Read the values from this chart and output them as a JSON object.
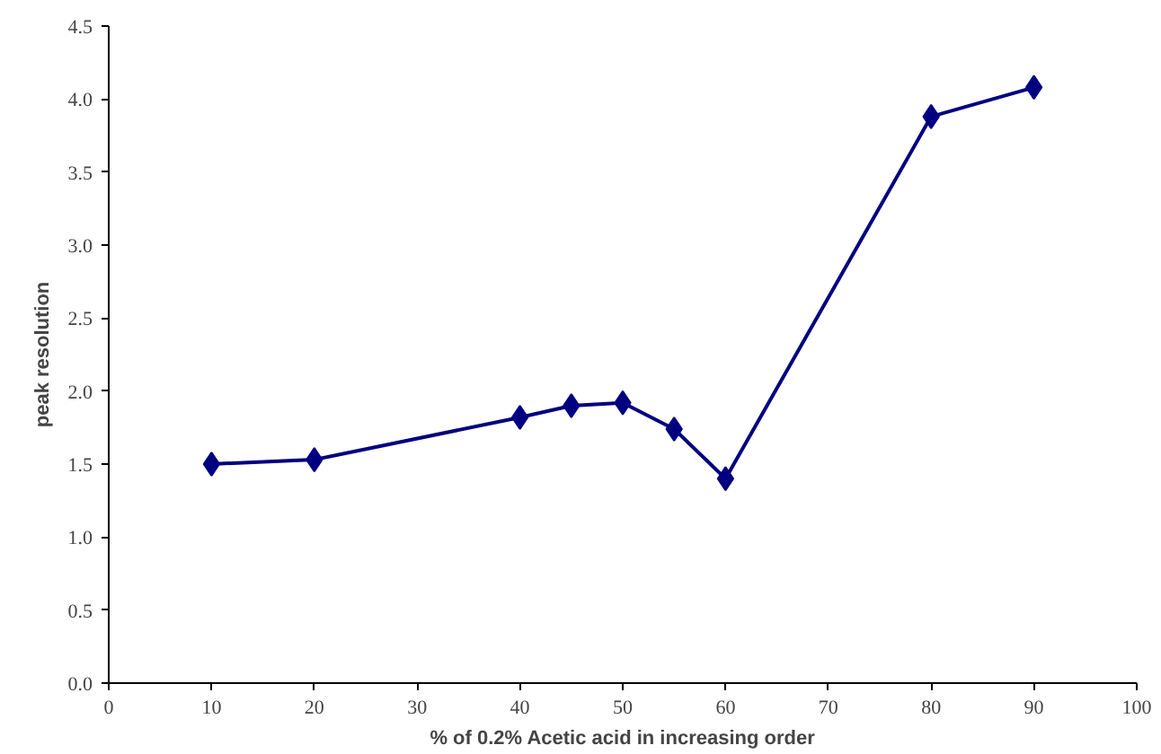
{
  "chart_data": {
    "type": "line",
    "xlabel": "% of 0.2% Acetic acid in increasing order",
    "ylabel": "peak resolution",
    "x": [
      10,
      20,
      40,
      45,
      50,
      55,
      60,
      80,
      90
    ],
    "series": [
      {
        "color": "#000080",
        "values": [
          1.5,
          1.53,
          1.82,
          1.9,
          1.92,
          1.74,
          1.4,
          3.88,
          4.08
        ]
      }
    ],
    "marker": "diamond",
    "line_style": "solid",
    "xlim": [
      0,
      100
    ],
    "xticks": [
      0,
      10,
      20,
      30,
      40,
      50,
      60,
      70,
      80,
      90,
      100
    ],
    "ylim": [
      0,
      4.5
    ],
    "yticks": [
      {
        "value": 0,
        "label": "0.0"
      },
      {
        "value": 0.5,
        "label": "0.5"
      },
      {
        "value": 1,
        "label": "1.0"
      },
      {
        "value": 1.5,
        "label": "1.5"
      },
      {
        "value": 2,
        "label": "2.0"
      },
      {
        "value": 2.5,
        "label": "2.5"
      },
      {
        "value": 3,
        "label": "3.0"
      },
      {
        "value": 3.5,
        "label": "3.5"
      },
      {
        "value": 4,
        "label": "4.0"
      },
      {
        "value": 4.5,
        "label": "4.5"
      }
    ]
  }
}
